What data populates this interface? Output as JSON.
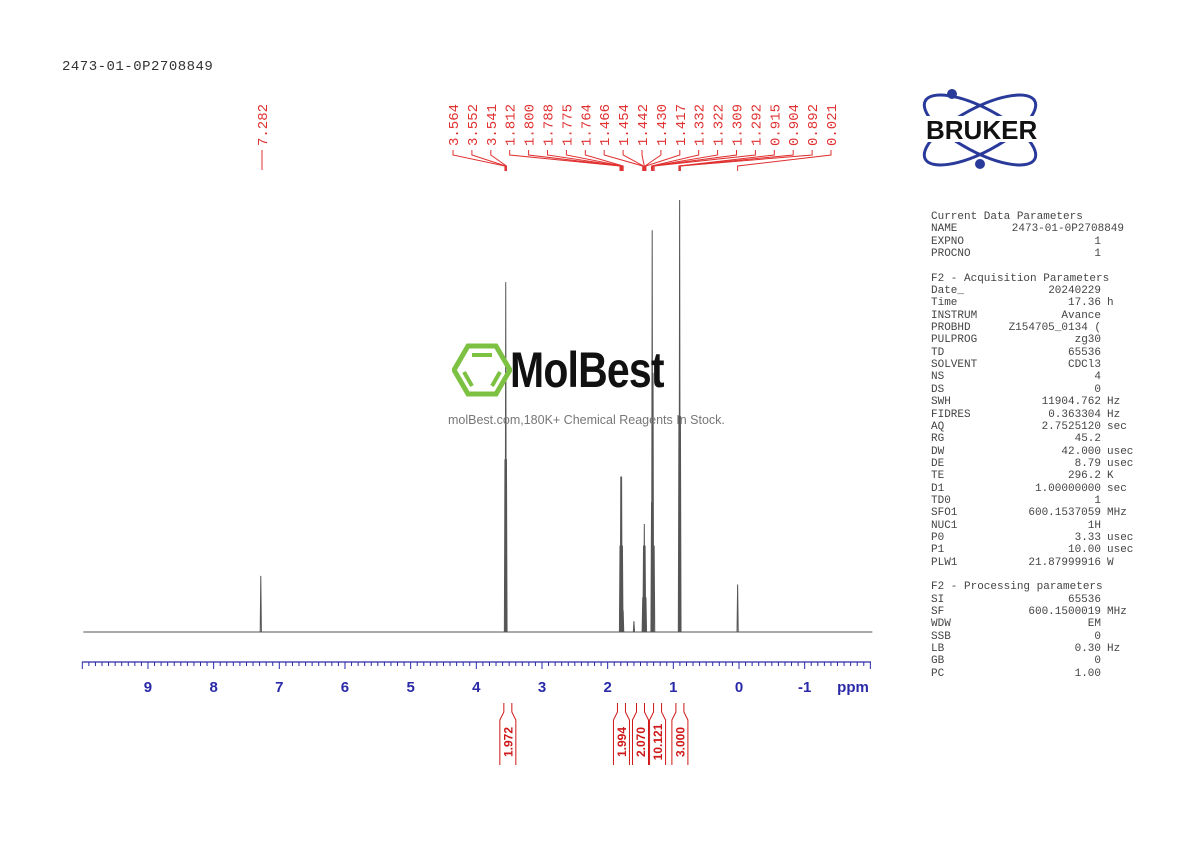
{
  "header": {
    "title": "2473-01-0P2708849"
  },
  "logo": {
    "brand": "BRUKER",
    "brand_color": "#2a3a9a"
  },
  "watermark": {
    "name": "MolBest",
    "tagline": "molBest.com,180K+ Chemical Reagents In Stock.",
    "color": "#7dc142"
  },
  "params": [
    {
      "title": "Current Data Parameters",
      "rows": [
        [
          "NAME",
          "2473-01-0P2708849",
          ""
        ],
        [
          "EXPNO",
          "1",
          ""
        ],
        [
          "PROCNO",
          "1",
          ""
        ]
      ]
    },
    {
      "title": "F2 - Acquisition Parameters",
      "rows": [
        [
          "Date_",
          "20240229",
          ""
        ],
        [
          "Time",
          "17.36",
          "h"
        ],
        [
          "INSTRUM",
          "Avance",
          ""
        ],
        [
          "PROBHD",
          "Z154705_0134 (",
          ""
        ],
        [
          "PULPROG",
          "zg30",
          ""
        ],
        [
          "TD",
          "65536",
          ""
        ],
        [
          "SOLVENT",
          "CDCl3",
          ""
        ],
        [
          "NS",
          "4",
          ""
        ],
        [
          "DS",
          "0",
          ""
        ],
        [
          "SWH",
          "11904.762",
          "Hz"
        ],
        [
          "FIDRES",
          "0.363304",
          "Hz"
        ],
        [
          "AQ",
          "2.7525120",
          "sec"
        ],
        [
          "RG",
          "45.2",
          ""
        ],
        [
          "DW",
          "42.000",
          "usec"
        ],
        [
          "DE",
          "8.79",
          "usec"
        ],
        [
          "TE",
          "296.2",
          "K"
        ],
        [
          "D1",
          "1.00000000",
          "sec"
        ],
        [
          "TD0",
          "1",
          ""
        ],
        [
          "SFO1",
          "600.1537059",
          "MHz"
        ],
        [
          "NUC1",
          "1H",
          ""
        ],
        [
          "P0",
          "3.33",
          "usec"
        ],
        [
          "P1",
          "10.00",
          "usec"
        ],
        [
          "PLW1",
          "21.87999916",
          "W"
        ]
      ]
    },
    {
      "title": "F2 - Processing parameters",
      "rows": [
        [
          "SI",
          "65536",
          ""
        ],
        [
          "SF",
          "600.1500019",
          "MHz"
        ],
        [
          "WDW",
          "EM",
          ""
        ],
        [
          "SSB",
          "0",
          ""
        ],
        [
          "LB",
          "0.30",
          "Hz"
        ],
        [
          "GB",
          "0",
          ""
        ],
        [
          "PC",
          "1.00",
          ""
        ]
      ]
    }
  ],
  "chart_data": {
    "type": "line",
    "subtype": "1H NMR spectrum",
    "xlabel": "ppm",
    "xlim": [
      10,
      -2
    ],
    "x_reversed": true,
    "xticks": [
      "9",
      "8",
      "7",
      "6",
      "5",
      "4",
      "3",
      "2",
      "1",
      "0",
      "-1"
    ],
    "grid": false,
    "colors": {
      "spectrum": "#555555",
      "peak_labels": "#e03030",
      "integrals": "#d01818",
      "axis": "#2a2aa8"
    },
    "peak_labels": [
      "7.282",
      "3.564",
      "3.552",
      "3.541",
      "1.812",
      "1.800",
      "1.788",
      "1.775",
      "1.764",
      "1.466",
      "1.454",
      "1.442",
      "1.430",
      "1.417",
      "1.332",
      "1.322",
      "1.309",
      "1.292",
      "0.915",
      "0.904",
      "0.892",
      "0.021"
    ],
    "peaks": [
      {
        "ppm": 7.282,
        "intensity": 0.13
      },
      {
        "ppm": 3.564,
        "intensity": 0.4
      },
      {
        "ppm": 3.552,
        "intensity": 0.81
      },
      {
        "ppm": 3.541,
        "intensity": 0.4
      },
      {
        "ppm": 1.812,
        "intensity": 0.2
      },
      {
        "ppm": 1.8,
        "intensity": 0.36
      },
      {
        "ppm": 1.788,
        "intensity": 0.36
      },
      {
        "ppm": 1.775,
        "intensity": 0.2
      },
      {
        "ppm": 1.764,
        "intensity": 0.05
      },
      {
        "ppm": 1.6,
        "intensity": 0.025
      },
      {
        "ppm": 1.466,
        "intensity": 0.08
      },
      {
        "ppm": 1.454,
        "intensity": 0.2
      },
      {
        "ppm": 1.442,
        "intensity": 0.25
      },
      {
        "ppm": 1.43,
        "intensity": 0.2
      },
      {
        "ppm": 1.417,
        "intensity": 0.08
      },
      {
        "ppm": 1.332,
        "intensity": 0.3
      },
      {
        "ppm": 1.322,
        "intensity": 0.93
      },
      {
        "ppm": 1.309,
        "intensity": 0.6
      },
      {
        "ppm": 1.292,
        "intensity": 0.2
      },
      {
        "ppm": 0.915,
        "intensity": 0.5
      },
      {
        "ppm": 0.904,
        "intensity": 1.0
      },
      {
        "ppm": 0.892,
        "intensity": 0.5
      },
      {
        "ppm": 0.021,
        "intensity": 0.11
      }
    ],
    "integrals": [
      {
        "ppm": 3.52,
        "value": "1.972"
      },
      {
        "ppm": 1.79,
        "value": "1.994"
      },
      {
        "ppm": 1.5,
        "value": "2.070"
      },
      {
        "ppm": 1.24,
        "value": "10.121"
      },
      {
        "ppm": 0.9,
        "value": "3.000"
      }
    ]
  }
}
